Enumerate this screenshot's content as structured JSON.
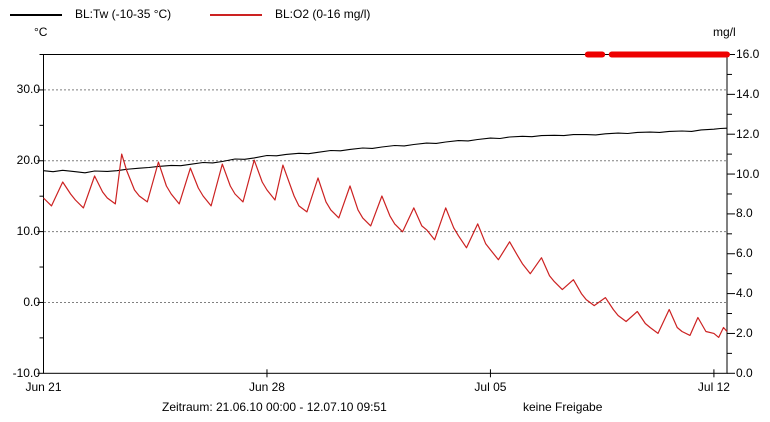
{
  "legend": {
    "items": [
      {
        "label": "BL:Tw (-10-35 °C)",
        "color": "#000000"
      },
      {
        "label": "BL:O2 (0-16 mg/l)",
        "color": "#cc2222"
      }
    ]
  },
  "axes": {
    "left_unit": "°C",
    "right_unit": "mg/l"
  },
  "footer": {
    "zeitraum": "Zeitraum: 21.06.10 00:00 - 12.07.10 09:51",
    "freigabe": "keine Freigabe"
  },
  "chart_data": {
    "type": "line",
    "x_axis": {
      "range_days": [
        0,
        21.41
      ],
      "start": "21.06.10 00:00",
      "end": "12.07.10 09:51",
      "ticks": [
        {
          "t": 0,
          "label": "Jun 21"
        },
        {
          "t": 7,
          "label": "Jun 28"
        },
        {
          "t": 14,
          "label": "Jul 05"
        },
        {
          "t": 21,
          "label": "Jul 12"
        }
      ]
    },
    "left_axis": {
      "unit": "°C",
      "range": [
        -10,
        35
      ],
      "major_ticks": [
        {
          "v": 30,
          "label": "30.0"
        },
        {
          "v": 20,
          "label": "20.0"
        },
        {
          "v": 10,
          "label": "10.0"
        },
        {
          "v": 0,
          "label": "0.0"
        },
        {
          "v": -10,
          "label": "-10.0"
        }
      ],
      "minor_ticks": [
        35,
        25,
        15,
        5,
        -5
      ],
      "gridlines": [
        30,
        20,
        10,
        0
      ],
      "grid_style": "dotted"
    },
    "right_axis": {
      "unit": "mg/l",
      "range": [
        0,
        16
      ],
      "major_ticks": [
        {
          "v": 16,
          "label": "16.0"
        },
        {
          "v": 14,
          "label": "14.0"
        },
        {
          "v": 12,
          "label": "12.0"
        },
        {
          "v": 10,
          "label": "10.0"
        },
        {
          "v": 8,
          "label": "8.0"
        },
        {
          "v": 6,
          "label": "6.0"
        },
        {
          "v": 4,
          "label": "4.0"
        },
        {
          "v": 2,
          "label": "2.0"
        },
        {
          "v": 0,
          "label": "0.0"
        }
      ],
      "minor_ticks": [
        15,
        13,
        11,
        9,
        7,
        5,
        3,
        1
      ]
    },
    "legend_position": "top-left",
    "series": [
      {
        "name": "BL:Tw (-10-35 °C)",
        "axis": "left",
        "color": "#000000",
        "points": [
          [
            0,
            18.6
          ],
          [
            0.3,
            18.45
          ],
          [
            0.6,
            18.65
          ],
          [
            1,
            18.45
          ],
          [
            1.3,
            18.3
          ],
          [
            1.6,
            18.55
          ],
          [
            2,
            18.5
          ],
          [
            2.3,
            18.6
          ],
          [
            2.6,
            18.8
          ],
          [
            3,
            18.95
          ],
          [
            3.3,
            19.05
          ],
          [
            3.6,
            19.2
          ],
          [
            4,
            19.35
          ],
          [
            4.3,
            19.3
          ],
          [
            4.6,
            19.5
          ],
          [
            5,
            19.75
          ],
          [
            5.3,
            19.7
          ],
          [
            5.6,
            19.9
          ],
          [
            6,
            20.25
          ],
          [
            6.3,
            20.2
          ],
          [
            6.6,
            20.4
          ],
          [
            7,
            20.75
          ],
          [
            7.3,
            20.7
          ],
          [
            7.6,
            20.9
          ],
          [
            8,
            21.05
          ],
          [
            8.3,
            21
          ],
          [
            8.6,
            21.2
          ],
          [
            9,
            21.45
          ],
          [
            9.3,
            21.4
          ],
          [
            9.6,
            21.6
          ],
          [
            10,
            21.8
          ],
          [
            10.3,
            21.75
          ],
          [
            10.6,
            21.95
          ],
          [
            11,
            22.15
          ],
          [
            11.3,
            22.1
          ],
          [
            11.6,
            22.3
          ],
          [
            12,
            22.5
          ],
          [
            12.3,
            22.45
          ],
          [
            12.6,
            22.65
          ],
          [
            13,
            22.85
          ],
          [
            13.3,
            22.8
          ],
          [
            13.6,
            23
          ],
          [
            14,
            23.2
          ],
          [
            14.3,
            23.15
          ],
          [
            14.6,
            23.35
          ],
          [
            15,
            23.45
          ],
          [
            15.3,
            23.4
          ],
          [
            15.6,
            23.55
          ],
          [
            16,
            23.6
          ],
          [
            16.3,
            23.55
          ],
          [
            16.6,
            23.7
          ],
          [
            17,
            23.7
          ],
          [
            17.3,
            23.65
          ],
          [
            17.6,
            23.8
          ],
          [
            18,
            23.9
          ],
          [
            18.3,
            23.85
          ],
          [
            18.6,
            24
          ],
          [
            19,
            24.05
          ],
          [
            19.3,
            24
          ],
          [
            19.6,
            24.15
          ],
          [
            20,
            24.2
          ],
          [
            20.3,
            24.15
          ],
          [
            20.6,
            24.35
          ],
          [
            21,
            24.45
          ],
          [
            21.2,
            24.55
          ],
          [
            21.41,
            24.6
          ]
        ]
      },
      {
        "name": "BL:O2 (0-16 mg/l)",
        "axis": "right",
        "color": "#cc2222",
        "points": [
          [
            0,
            8.8
          ],
          [
            0.25,
            8.4
          ],
          [
            0.6,
            9.6
          ],
          [
            0.85,
            9.0
          ],
          [
            1,
            8.7
          ],
          [
            1.25,
            8.3
          ],
          [
            1.6,
            9.9
          ],
          [
            1.85,
            9.1
          ],
          [
            2,
            8.8
          ],
          [
            2.25,
            8.5
          ],
          [
            2.45,
            11.0
          ],
          [
            2.6,
            10.2
          ],
          [
            2.85,
            9.2
          ],
          [
            3,
            8.9
          ],
          [
            3.25,
            8.6
          ],
          [
            3.6,
            10.6
          ],
          [
            3.85,
            9.4
          ],
          [
            4,
            9.0
          ],
          [
            4.25,
            8.5
          ],
          [
            4.6,
            10.3
          ],
          [
            4.85,
            9.3
          ],
          [
            5,
            8.9
          ],
          [
            5.25,
            8.4
          ],
          [
            5.6,
            10.5
          ],
          [
            5.85,
            9.4
          ],
          [
            6,
            9.0
          ],
          [
            6.25,
            8.6
          ],
          [
            6.6,
            10.7
          ],
          [
            6.85,
            9.6
          ],
          [
            7,
            9.2
          ],
          [
            7.25,
            8.7
          ],
          [
            7.5,
            10.45
          ],
          [
            7.85,
            8.9
          ],
          [
            8,
            8.4
          ],
          [
            8.25,
            8.1
          ],
          [
            8.6,
            9.8
          ],
          [
            8.85,
            8.6
          ],
          [
            9,
            8.2
          ],
          [
            9.25,
            7.8
          ],
          [
            9.6,
            9.4
          ],
          [
            9.85,
            8.2
          ],
          [
            10,
            7.8
          ],
          [
            10.25,
            7.4
          ],
          [
            10.6,
            8.9
          ],
          [
            10.85,
            7.9
          ],
          [
            11,
            7.5
          ],
          [
            11.25,
            7.1
          ],
          [
            11.6,
            8.3
          ],
          [
            11.85,
            7.4
          ],
          [
            12,
            7.2
          ],
          [
            12.25,
            6.7
          ],
          [
            12.6,
            8.3
          ],
          [
            12.85,
            7.3
          ],
          [
            13,
            6.9
          ],
          [
            13.25,
            6.3
          ],
          [
            13.6,
            7.5
          ],
          [
            13.85,
            6.5
          ],
          [
            14,
            6.2
          ],
          [
            14.25,
            5.7
          ],
          [
            14.6,
            6.6
          ],
          [
            14.85,
            5.9
          ],
          [
            15,
            5.5
          ],
          [
            15.25,
            5.0
          ],
          [
            15.6,
            5.8
          ],
          [
            15.85,
            4.9
          ],
          [
            16,
            4.6
          ],
          [
            16.25,
            4.2
          ],
          [
            16.6,
            4.7
          ],
          [
            16.85,
            4.0
          ],
          [
            17,
            3.7
          ],
          [
            17.25,
            3.4
          ],
          [
            17.6,
            3.8
          ],
          [
            17.85,
            3.2
          ],
          [
            18,
            2.9
          ],
          [
            18.25,
            2.6
          ],
          [
            18.6,
            3.1
          ],
          [
            18.85,
            2.5
          ],
          [
            19,
            2.3
          ],
          [
            19.25,
            2.0
          ],
          [
            19.6,
            3.2
          ],
          [
            19.85,
            2.3
          ],
          [
            20,
            2.1
          ],
          [
            20.25,
            1.9
          ],
          [
            20.5,
            2.8
          ],
          [
            20.75,
            2.1
          ],
          [
            21,
            2.0
          ],
          [
            21.15,
            1.8
          ],
          [
            21.3,
            2.3
          ],
          [
            21.41,
            2.1
          ]
        ]
      }
    ],
    "overrange_marker": {
      "description": "thick red bar drawn at right-axis value 16.0",
      "value": 16.0,
      "color": "#ee0000",
      "segments_days": [
        [
          17.05,
          17.5
        ],
        [
          17.8,
          21.41
        ]
      ]
    }
  }
}
